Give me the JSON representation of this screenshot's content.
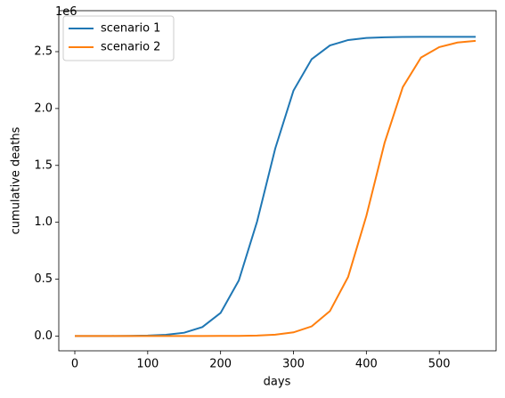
{
  "chart_data": {
    "type": "line",
    "xlabel": "days",
    "ylabel": "cumulative deaths",
    "y_offset_text": "1e6",
    "x": [
      0,
      25,
      50,
      75,
      100,
      125,
      150,
      175,
      200,
      225,
      250,
      275,
      300,
      325,
      350,
      375,
      400,
      425,
      450,
      475,
      500,
      525,
      550
    ],
    "series": [
      {
        "name": "scenario 1",
        "color": "#1f77b4",
        "values": [
          0.0001,
          0.0002,
          0.0005,
          0.0015,
          0.004,
          0.011,
          0.029,
          0.079,
          0.203,
          0.488,
          1.005,
          1.649,
          2.157,
          2.434,
          2.554,
          2.602,
          2.62,
          2.626,
          2.629,
          2.63,
          2.63,
          2.63,
          2.63
        ]
      },
      {
        "name": "scenario 2",
        "color": "#ff7f0e",
        "values": [
          0,
          0,
          0,
          0,
          0,
          0,
          0.0001,
          0.0002,
          0.0006,
          0.0016,
          0.0044,
          0.012,
          0.032,
          0.085,
          0.219,
          0.52,
          1.056,
          1.698,
          2.188,
          2.448,
          2.54,
          2.58,
          2.595
        ]
      }
    ],
    "xlim": [
      -22,
      578
    ],
    "ylim": [
      -0.13,
      2.86
    ],
    "xticks": [
      0,
      100,
      200,
      300,
      400,
      500
    ],
    "yticks": [
      {
        "value": 0,
        "label": "0.0"
      },
      {
        "value": 0.5,
        "label": "0.5"
      },
      {
        "value": 1,
        "label": "1.0"
      },
      {
        "value": 1.5,
        "label": "1.5"
      },
      {
        "value": 2,
        "label": "2.0"
      },
      {
        "value": 2.5,
        "label": "2.5"
      }
    ],
    "legend": "upper left",
    "grid": false
  }
}
